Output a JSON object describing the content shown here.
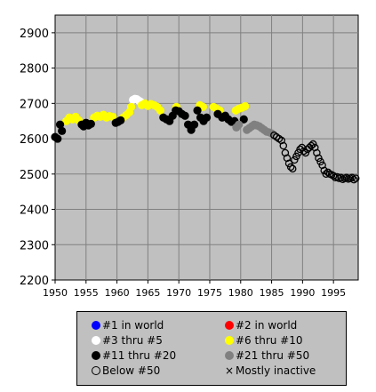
{
  "chart_data": {
    "type": "scatter",
    "title": "",
    "xlabel": "",
    "ylabel": "",
    "xlim": [
      1950,
      1999
    ],
    "ylim": [
      2200,
      2950
    ],
    "x_ticks": [
      1950,
      1955,
      1960,
      1965,
      1970,
      1975,
      1980,
      1985,
      1990,
      1995
    ],
    "y_ticks": [
      2200,
      2300,
      2400,
      2500,
      2600,
      2700,
      2800,
      2900
    ],
    "x_tick_labels": [
      "1950",
      "1955",
      "1960",
      "1965",
      "1970",
      "1975",
      "1980",
      "1985",
      "1990",
      "1995"
    ],
    "y_tick_labels": [
      "2200",
      "2300",
      "2400",
      "2500",
      "2600",
      "2700",
      "2800",
      "2900"
    ],
    "grid": true,
    "plot_background": "#c0c0c0",
    "legend_position": "bottom",
    "series": [
      {
        "name": "#1 in world",
        "color": "#0000ff",
        "marker": "filled",
        "points": []
      },
      {
        "name": "#2 in world",
        "color": "#ff0000",
        "marker": "filled",
        "points": []
      },
      {
        "name": "#3 thru #5",
        "color": "#ffffff",
        "marker": "filled",
        "points": [
          [
            1962.6,
            2710
          ],
          [
            1962.9,
            2713
          ],
          [
            1963.2,
            2712
          ],
          [
            1963.5,
            2708
          ],
          [
            1963.8,
            2705
          ]
        ]
      },
      {
        "name": "#6 thru #10",
        "color": "#ffff00",
        "marker": "filled",
        "points": [
          [
            1951.8,
            2650
          ],
          [
            1952.3,
            2660
          ],
          [
            1952.8,
            2655
          ],
          [
            1953.3,
            2662
          ],
          [
            1953.8,
            2652
          ],
          [
            1956.3,
            2660
          ],
          [
            1956.8,
            2665
          ],
          [
            1957.3,
            2662
          ],
          [
            1957.8,
            2668
          ],
          [
            1958.3,
            2660
          ],
          [
            1958.8,
            2664
          ],
          [
            1959.3,
            2662
          ],
          [
            1961.0,
            2660
          ],
          [
            1961.5,
            2667
          ],
          [
            1962.0,
            2675
          ],
          [
            1962.3,
            2690
          ],
          [
            1964.0,
            2695
          ],
          [
            1964.5,
            2700
          ],
          [
            1965.0,
            2693
          ],
          [
            1965.5,
            2698
          ],
          [
            1966.0,
            2695
          ],
          [
            1966.5,
            2690
          ],
          [
            1967.0,
            2680
          ],
          [
            1969.6,
            2690
          ],
          [
            1973.4,
            2695
          ],
          [
            1973.9,
            2690
          ],
          [
            1975.6,
            2690
          ],
          [
            1976.1,
            2685
          ],
          [
            1976.6,
            2680
          ],
          [
            1979.2,
            2680
          ],
          [
            1979.7,
            2685
          ],
          [
            1980.2,
            2688
          ],
          [
            1980.7,
            2692
          ]
        ]
      },
      {
        "name": "#11 thru #20",
        "color": "#000000",
        "marker": "filled",
        "points": [
          [
            1950.0,
            2605
          ],
          [
            1950.4,
            2600
          ],
          [
            1950.8,
            2640
          ],
          [
            1951.1,
            2622
          ],
          [
            1954.3,
            2640
          ],
          [
            1954.6,
            2635
          ],
          [
            1955.0,
            2645
          ],
          [
            1955.4,
            2638
          ],
          [
            1955.8,
            2642
          ],
          [
            1959.8,
            2645
          ],
          [
            1960.2,
            2648
          ],
          [
            1960.6,
            2652
          ],
          [
            1967.5,
            2660
          ],
          [
            1968.0,
            2655
          ],
          [
            1968.5,
            2650
          ],
          [
            1969.0,
            2665
          ],
          [
            1969.5,
            2680
          ],
          [
            1970.0,
            2678
          ],
          [
            1970.5,
            2670
          ],
          [
            1971.0,
            2665
          ],
          [
            1971.5,
            2640
          ],
          [
            1972.0,
            2625
          ],
          [
            1972.5,
            2640
          ],
          [
            1973.0,
            2680
          ],
          [
            1973.5,
            2660
          ],
          [
            1974.0,
            2650
          ],
          [
            1974.5,
            2660
          ],
          [
            1976.3,
            2670
          ],
          [
            1977.0,
            2660
          ],
          [
            1977.5,
            2665
          ],
          [
            1978.0,
            2655
          ],
          [
            1978.5,
            2648
          ],
          [
            1979.0,
            2650
          ],
          [
            1980.5,
            2655
          ]
        ]
      },
      {
        "name": "#21 thru #50",
        "color": "#808080",
        "marker": "filled",
        "points": [
          [
            1979.3,
            2632
          ],
          [
            1979.7,
            2640
          ],
          [
            1981.0,
            2625
          ],
          [
            1981.4,
            2630
          ],
          [
            1981.8,
            2635
          ],
          [
            1982.2,
            2640
          ],
          [
            1982.6,
            2638
          ],
          [
            1983.0,
            2635
          ],
          [
            1983.4,
            2630
          ],
          [
            1983.8,
            2625
          ],
          [
            1984.2,
            2620
          ],
          [
            1984.6,
            2618
          ],
          [
            1985.0,
            2615
          ]
        ]
      },
      {
        "name": "Below #50",
        "color": "#000000",
        "marker": "hollow",
        "points": [
          [
            1985.4,
            2610
          ],
          [
            1985.8,
            2605
          ],
          [
            1986.2,
            2600
          ],
          [
            1986.6,
            2595
          ],
          [
            1986.9,
            2580
          ],
          [
            1987.2,
            2560
          ],
          [
            1987.5,
            2545
          ],
          [
            1987.8,
            2530
          ],
          [
            1988.1,
            2520
          ],
          [
            1988.4,
            2515
          ],
          [
            1988.7,
            2540
          ],
          [
            1989.0,
            2550
          ],
          [
            1989.3,
            2560
          ],
          [
            1989.6,
            2570
          ],
          [
            1989.9,
            2575
          ],
          [
            1990.2,
            2565
          ],
          [
            1990.5,
            2560
          ],
          [
            1990.8,
            2570
          ],
          [
            1991.1,
            2575
          ],
          [
            1991.4,
            2580
          ],
          [
            1991.7,
            2585
          ],
          [
            1992.0,
            2575
          ],
          [
            1992.3,
            2560
          ],
          [
            1992.6,
            2545
          ],
          [
            1992.9,
            2535
          ],
          [
            1993.2,
            2525
          ],
          [
            1993.5,
            2510
          ],
          [
            1993.8,
            2500
          ],
          [
            1994.1,
            2505
          ],
          [
            1994.4,
            2500
          ],
          [
            1994.7,
            2498
          ],
          [
            1995.0,
            2495
          ],
          [
            1995.3,
            2490
          ],
          [
            1995.6,
            2492
          ],
          [
            1995.9,
            2488
          ],
          [
            1996.2,
            2490
          ],
          [
            1996.5,
            2485
          ],
          [
            1996.8,
            2488
          ],
          [
            1997.1,
            2490
          ],
          [
            1997.4,
            2486
          ],
          [
            1997.7,
            2488
          ],
          [
            1998.0,
            2490
          ],
          [
            1998.3,
            2484
          ],
          [
            1998.6,
            2488
          ]
        ]
      },
      {
        "name": "Mostly inactive",
        "color": "#000000",
        "marker": "cross",
        "points": []
      }
    ]
  }
}
